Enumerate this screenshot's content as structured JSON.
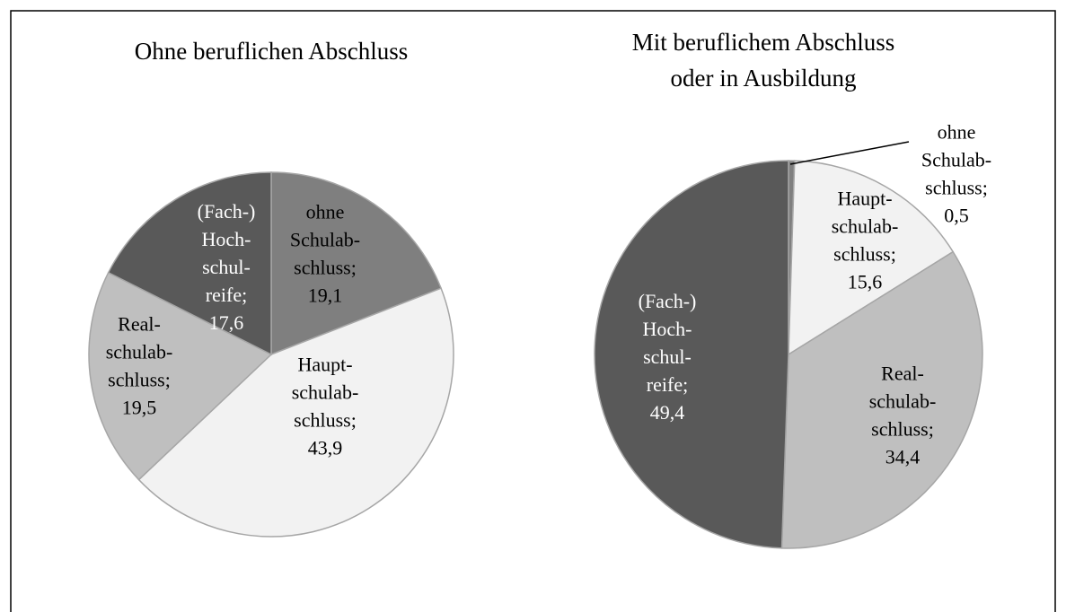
{
  "chart_data": [
    {
      "type": "pie",
      "title": [
        "Ohne beruflichen Abschluss"
      ],
      "categories": [
        [
          "ohne",
          "Schulab-",
          "schluss;"
        ],
        [
          "Haupt-",
          "schulab-",
          "schluss;"
        ],
        [
          "Real-",
          "schulab-",
          "schluss;"
        ],
        [
          "(Fach-)",
          "Hoch-",
          "schul-",
          "reife;"
        ]
      ],
      "values": [
        19.1,
        43.9,
        19.5,
        17.6
      ],
      "value_labels": [
        "19,1",
        "43,9",
        "19,5",
        "17,6"
      ],
      "colors": [
        "#7f7f7f",
        "#f2f2f2",
        "#bfbfbf",
        "#595959"
      ]
    },
    {
      "type": "pie",
      "title": [
        "Mit beruflichem Abschluss",
        "oder in Ausbildung"
      ],
      "categories": [
        [
          "ohne",
          "Schulab-",
          "schluss;"
        ],
        [
          "Haupt-",
          "schulab-",
          "schluss;"
        ],
        [
          "Real-",
          "schulab-",
          "schluss;"
        ],
        [
          "(Fach-)",
          "Hoch-",
          "schul-",
          "reife;"
        ]
      ],
      "values": [
        0.5,
        15.6,
        34.4,
        49.4
      ],
      "value_labels": [
        "0,5",
        "15,6",
        "34,4",
        "49,4"
      ],
      "colors": [
        "#7f7f7f",
        "#f2f2f2",
        "#bfbfbf",
        "#595959"
      ]
    }
  ]
}
